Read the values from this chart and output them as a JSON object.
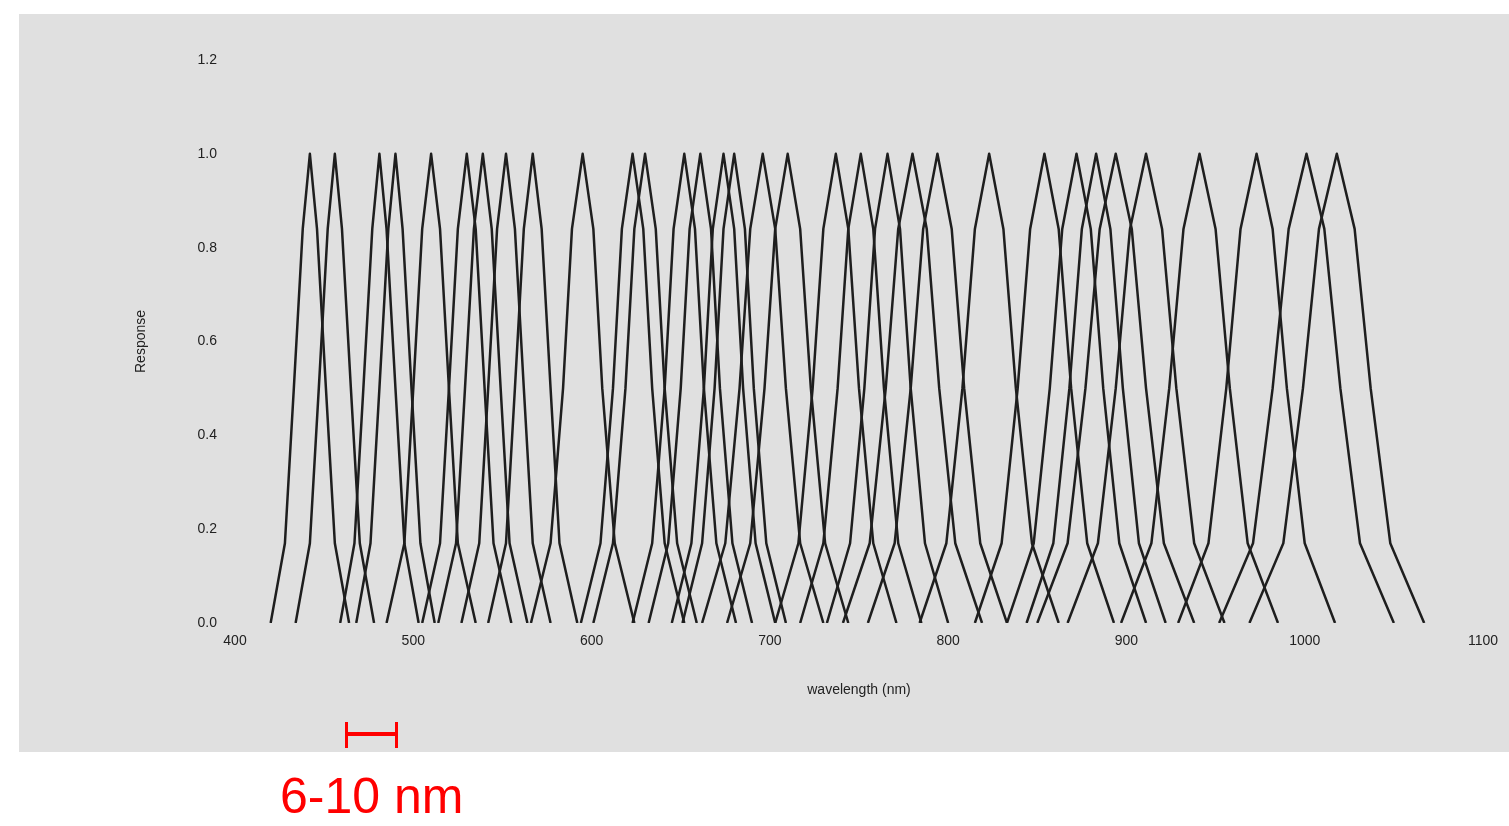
{
  "chart_data": {
    "type": "line",
    "xlabel": "wavelength (nm)",
    "ylabel": "Response",
    "xlim": [
      400,
      1100
    ],
    "xticks": [
      400,
      500,
      600,
      700,
      800,
      900,
      1000,
      1100
    ],
    "ylim": [
      0,
      1.2
    ],
    "yticks": [
      {
        "value": 0,
        "label": "0.0"
      },
      {
        "value": 0.2,
        "label": "0.2"
      },
      {
        "value": 0.4,
        "label": "0.4"
      },
      {
        "value": 0.6,
        "label": "0.6"
      },
      {
        "value": 0.8,
        "label": "0.8"
      },
      {
        "value": 1,
        "label": "1.0"
      },
      {
        "value": 1.2,
        "label": "1.2"
      }
    ],
    "grid": false,
    "legend": false,
    "marker": "none",
    "annotations": [
      "6-10 nm"
    ],
    "series": [
      {
        "color": "#1e1e1e",
        "x": [
          420,
          428,
          433,
          438,
          442,
          446,
          451,
          456,
          464
        ],
        "values": [
          0,
          0.17,
          0.5,
          0.84,
          1,
          0.84,
          0.5,
          0.17,
          0
        ]
      },
      {
        "color": "#1e1e1e",
        "x": [
          434,
          442,
          447,
          452,
          456,
          460,
          465,
          470,
          478
        ],
        "values": [
          0,
          0.17,
          0.5,
          0.84,
          1,
          0.84,
          0.5,
          0.17,
          0
        ]
      },
      {
        "color": "#1e1e1e",
        "x": [
          459,
          467,
          472,
          477,
          481,
          485,
          490,
          495,
          503
        ],
        "values": [
          0,
          0.17,
          0.5,
          0.84,
          1,
          0.84,
          0.5,
          0.17,
          0
        ]
      },
      {
        "color": "#1e1e1e",
        "x": [
          468,
          476,
          481,
          486,
          490,
          494,
          499,
          504,
          512
        ],
        "values": [
          0,
          0.17,
          0.5,
          0.84,
          1,
          0.84,
          0.5,
          0.17,
          0
        ]
      },
      {
        "color": "#1e1e1e",
        "x": [
          485,
          495,
          500,
          505,
          510,
          515,
          520,
          525,
          535
        ],
        "values": [
          0,
          0.17,
          0.5,
          0.84,
          1,
          0.84,
          0.5,
          0.17,
          0
        ]
      },
      {
        "color": "#1e1e1e",
        "x": [
          505,
          515,
          520,
          525,
          530,
          535,
          540,
          545,
          555
        ],
        "values": [
          0,
          0.17,
          0.5,
          0.84,
          1,
          0.84,
          0.5,
          0.17,
          0
        ]
      },
      {
        "color": "#1e1e1e",
        "x": [
          514,
          524,
          529,
          534,
          539,
          544,
          549,
          554,
          564
        ],
        "values": [
          0,
          0.17,
          0.5,
          0.84,
          1,
          0.84,
          0.5,
          0.17,
          0
        ]
      },
      {
        "color": "#1e1e1e",
        "x": [
          527,
          537,
          542,
          547,
          552,
          557,
          562,
          567,
          577
        ],
        "values": [
          0,
          0.17,
          0.5,
          0.84,
          1,
          0.84,
          0.5,
          0.17,
          0
        ]
      },
      {
        "color": "#1e1e1e",
        "x": [
          542,
          552,
          557,
          562,
          567,
          572,
          577,
          582,
          592
        ],
        "values": [
          0,
          0.17,
          0.5,
          0.84,
          1,
          0.84,
          0.5,
          0.17,
          0
        ]
      },
      {
        "color": "#1e1e1e",
        "x": [
          566,
          577,
          584,
          589,
          595,
          601,
          606,
          613,
          624
        ],
        "values": [
          0,
          0.17,
          0.5,
          0.84,
          1,
          0.84,
          0.5,
          0.17,
          0
        ]
      },
      {
        "color": "#1e1e1e",
        "x": [
          594,
          605,
          612,
          617,
          623,
          629,
          634,
          641,
          652
        ],
        "values": [
          0,
          0.17,
          0.5,
          0.84,
          1,
          0.84,
          0.5,
          0.17,
          0
        ]
      },
      {
        "color": "#1e1e1e",
        "x": [
          601,
          612,
          619,
          624,
          630,
          636,
          641,
          648,
          659
        ],
        "values": [
          0,
          0.17,
          0.5,
          0.84,
          1,
          0.84,
          0.5,
          0.17,
          0
        ]
      },
      {
        "color": "#1e1e1e",
        "x": [
          623,
          634,
          641,
          646,
          652,
          658,
          663,
          670,
          681
        ],
        "values": [
          0,
          0.17,
          0.5,
          0.84,
          1,
          0.84,
          0.5,
          0.17,
          0
        ]
      },
      {
        "color": "#1e1e1e",
        "x": [
          632,
          643,
          650,
          655,
          661,
          667,
          672,
          679,
          690
        ],
        "values": [
          0,
          0.17,
          0.5,
          0.84,
          1,
          0.84,
          0.5,
          0.17,
          0
        ]
      },
      {
        "color": "#1e1e1e",
        "x": [
          645,
          656,
          663,
          668,
          674,
          680,
          685,
          692,
          703
        ],
        "values": [
          0,
          0.17,
          0.5,
          0.84,
          1,
          0.84,
          0.5,
          0.17,
          0
        ]
      },
      {
        "color": "#1e1e1e",
        "x": [
          651,
          662,
          669,
          674,
          680,
          686,
          691,
          698,
          709
        ],
        "values": [
          0,
          0.17,
          0.5,
          0.84,
          1,
          0.84,
          0.5,
          0.17,
          0
        ]
      },
      {
        "color": "#1e1e1e",
        "x": [
          662,
          675,
          683,
          689,
          696,
          703,
          709,
          717,
          730
        ],
        "values": [
          0,
          0.17,
          0.5,
          0.84,
          1,
          0.84,
          0.5,
          0.17,
          0
        ]
      },
      {
        "color": "#1e1e1e",
        "x": [
          676,
          689,
          697,
          703,
          710,
          717,
          723,
          731,
          744
        ],
        "values": [
          0,
          0.17,
          0.5,
          0.84,
          1,
          0.84,
          0.5,
          0.17,
          0
        ]
      },
      {
        "color": "#1e1e1e",
        "x": [
          703,
          716,
          724,
          730,
          737,
          744,
          750,
          758,
          771
        ],
        "values": [
          0,
          0.17,
          0.5,
          0.84,
          1,
          0.84,
          0.5,
          0.17,
          0
        ]
      },
      {
        "color": "#1e1e1e",
        "x": [
          717,
          730,
          738,
          744,
          751,
          758,
          764,
          772,
          785
        ],
        "values": [
          0,
          0.17,
          0.5,
          0.84,
          1,
          0.84,
          0.5,
          0.17,
          0
        ]
      },
      {
        "color": "#1e1e1e",
        "x": [
          732,
          745,
          753,
          759,
          766,
          773,
          779,
          787,
          800
        ],
        "values": [
          0,
          0.17,
          0.5,
          0.84,
          1,
          0.84,
          0.5,
          0.17,
          0
        ]
      },
      {
        "color": "#1e1e1e",
        "x": [
          741,
          756,
          765,
          772,
          780,
          788,
          795,
          804,
          819
        ],
        "values": [
          0,
          0.17,
          0.5,
          0.84,
          1,
          0.84,
          0.5,
          0.17,
          0
        ]
      },
      {
        "color": "#1e1e1e",
        "x": [
          755,
          770,
          779,
          786,
          794,
          802,
          809,
          818,
          833
        ],
        "values": [
          0,
          0.17,
          0.5,
          0.84,
          1,
          0.84,
          0.5,
          0.17,
          0
        ]
      },
      {
        "color": "#1e1e1e",
        "x": [
          784,
          799,
          808,
          815,
          823,
          831,
          838,
          847,
          862
        ],
        "values": [
          0,
          0.17,
          0.5,
          0.84,
          1,
          0.84,
          0.5,
          0.17,
          0
        ]
      },
      {
        "color": "#1e1e1e",
        "x": [
          815,
          830,
          839,
          846,
          854,
          862,
          869,
          878,
          893
        ],
        "values": [
          0,
          0.17,
          0.5,
          0.84,
          1,
          0.84,
          0.5,
          0.17,
          0
        ]
      },
      {
        "color": "#1e1e1e",
        "x": [
          833,
          848,
          857,
          864,
          872,
          880,
          887,
          896,
          911
        ],
        "values": [
          0,
          0.17,
          0.5,
          0.84,
          1,
          0.84,
          0.5,
          0.17,
          0
        ]
      },
      {
        "color": "#1e1e1e",
        "x": [
          844,
          859,
          868,
          875,
          883,
          891,
          898,
          907,
          922
        ],
        "values": [
          0,
          0.17,
          0.5,
          0.84,
          1,
          0.84,
          0.5,
          0.17,
          0
        ]
      },
      {
        "color": "#1e1e1e",
        "x": [
          850,
          867,
          877,
          885,
          894,
          903,
          911,
          921,
          938
        ],
        "values": [
          0,
          0.17,
          0.5,
          0.84,
          1,
          0.84,
          0.5,
          0.17,
          0
        ]
      },
      {
        "color": "#1e1e1e",
        "x": [
          867,
          884,
          894,
          902,
          911,
          920,
          928,
          938,
          955
        ],
        "values": [
          0,
          0.17,
          0.5,
          0.84,
          1,
          0.84,
          0.5,
          0.17,
          0
        ]
      },
      {
        "color": "#1e1e1e",
        "x": [
          897,
          914,
          924,
          932,
          941,
          950,
          958,
          968,
          985
        ],
        "values": [
          0,
          0.17,
          0.5,
          0.84,
          1,
          0.84,
          0.5,
          0.17,
          0
        ]
      },
      {
        "color": "#1e1e1e",
        "x": [
          929,
          946,
          956,
          964,
          973,
          982,
          990,
          1000,
          1017
        ],
        "values": [
          0,
          0.17,
          0.5,
          0.84,
          1,
          0.84,
          0.5,
          0.17,
          0
        ]
      },
      {
        "color": "#1e1e1e",
        "x": [
          952,
          971,
          982,
          991,
          1001,
          1011,
          1020,
          1031,
          1050
        ],
        "values": [
          0,
          0.17,
          0.5,
          0.84,
          1,
          0.84,
          0.5,
          0.17,
          0
        ]
      },
      {
        "color": "#1e1e1e",
        "x": [
          969,
          988,
          999,
          1008,
          1018,
          1028,
          1037,
          1048,
          1067
        ],
        "values": [
          0,
          0.17,
          0.5,
          0.84,
          1,
          0.84,
          0.5,
          0.17,
          0
        ]
      }
    ]
  }
}
